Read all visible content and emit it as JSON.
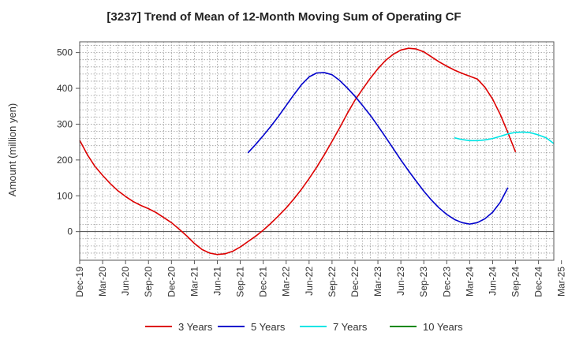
{
  "chart_data": {
    "type": "line",
    "title": "[3237]  Trend of Mean of 12-Month Moving Sum of Operating CF",
    "xlabel": "",
    "ylabel": "Amount (million yen)",
    "ylim": [
      -80,
      530
    ],
    "yticks": [
      0,
      100,
      200,
      300,
      400,
      500
    ],
    "x_start": "Dec-19",
    "x_end": "Mar-25",
    "month_count": 63,
    "tick_labels": [
      "Dec-19",
      "Mar-20",
      "Jun-20",
      "Sep-20",
      "Dec-20",
      "Mar-21",
      "Jun-21",
      "Sep-21",
      "Dec-21",
      "Mar-22",
      "Jun-22",
      "Sep-22",
      "Dec-22",
      "Mar-23",
      "Jun-23",
      "Sep-23",
      "Dec-23",
      "Mar-24",
      "Jun-24",
      "Sep-24",
      "Dec-24",
      "Mar-25"
    ],
    "grid": true,
    "legend_position": "bottom",
    "series": [
      {
        "name": "3 Years",
        "color": "#dd0000",
        "start_month_index": 0,
        "values": [
          255,
          215,
          182,
          157,
          134,
          114,
          98,
          84,
          73,
          64,
          53,
          39,
          25,
          7,
          -12,
          -33,
          -50,
          -60,
          -64,
          -62,
          -55,
          -43,
          -28,
          -13,
          4,
          23,
          44,
          66,
          91,
          118,
          148,
          180,
          215,
          252,
          290,
          330,
          367,
          398,
          428,
          455,
          478,
          495,
          507,
          512,
          510,
          502,
          488,
          474,
          462,
          451,
          442,
          434,
          426,
          403,
          370,
          327,
          276,
          222
        ]
      },
      {
        "name": "5 Years",
        "color": "#0000cc",
        "start_month_index": 22,
        "values": [
          220,
          243,
          268,
          294,
          322,
          352,
          382,
          410,
          432,
          443,
          444,
          438,
          422,
          401,
          378,
          352,
          325,
          295,
          264,
          232,
          200,
          170,
          141,
          113,
          88,
          66,
          48,
          34,
          25,
          21,
          25,
          36,
          54,
          82,
          123
        ]
      },
      {
        "name": "7 Years",
        "color": "#00e5e5",
        "start_month_index": 49,
        "values": [
          262,
          257,
          254,
          254,
          256,
          260,
          266,
          273,
          277,
          278,
          276,
          270,
          262,
          246
        ]
      },
      {
        "name": "10 Years",
        "color": "#008800",
        "start_month_index": 0,
        "values": []
      }
    ]
  }
}
